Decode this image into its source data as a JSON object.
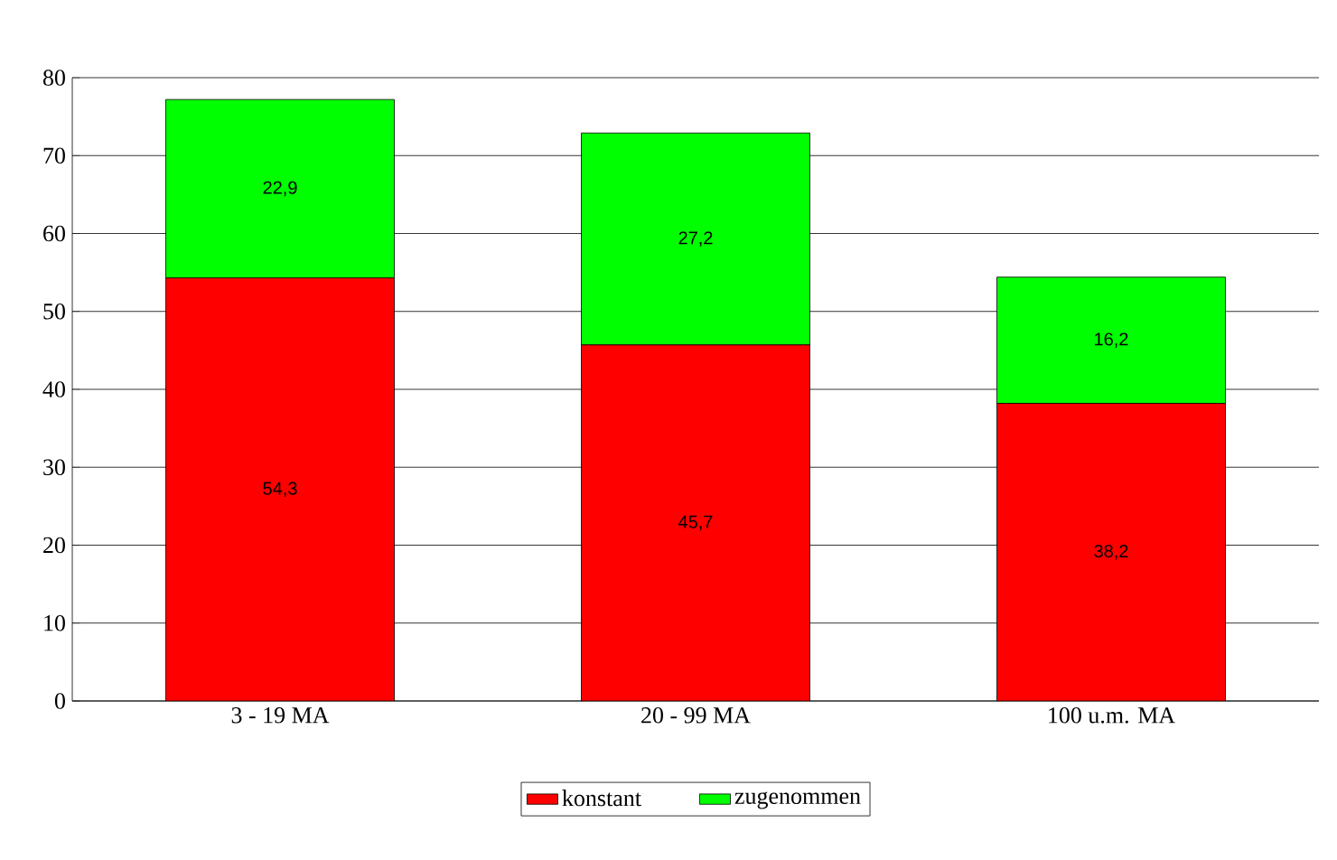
{
  "chart_data": {
    "type": "bar",
    "stacked": true,
    "categories": [
      "3 - 19 MA",
      "20 - 99 MA",
      "100 u.m. MA"
    ],
    "series": [
      {
        "name": "konstant",
        "color": "#ff0000",
        "values": [
          54.3,
          45.7,
          38.2
        ],
        "value_labels": [
          "54,3",
          "45,7",
          "38,2"
        ]
      },
      {
        "name": "zugenommen",
        "color": "#00ff00",
        "values": [
          22.9,
          27.2,
          16.2
        ],
        "value_labels": [
          "22,9",
          "27,2",
          "16,2"
        ]
      }
    ],
    "ylim": [
      0,
      80
    ],
    "yticks": [
      0,
      10,
      20,
      30,
      40,
      50,
      60,
      70,
      80
    ],
    "grid": "y",
    "legend": "bottom"
  }
}
